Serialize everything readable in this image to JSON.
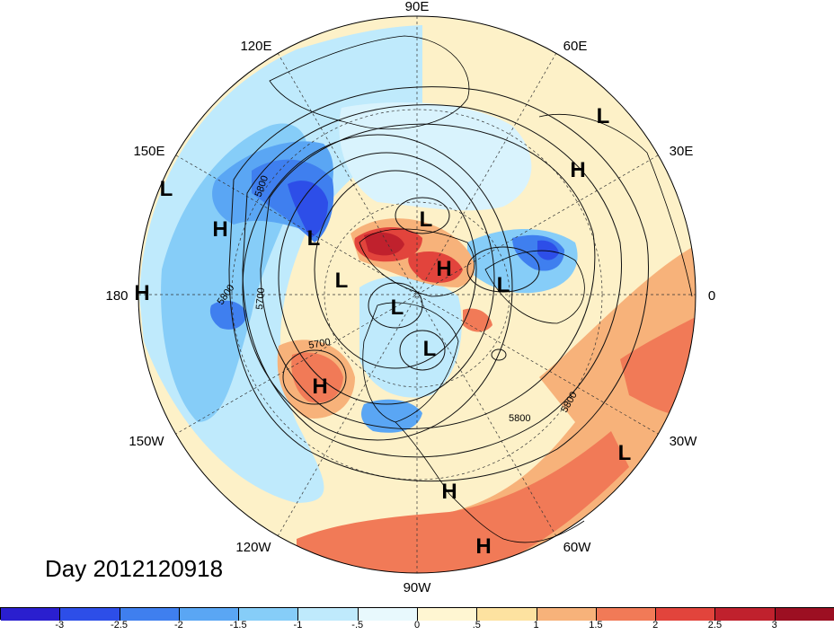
{
  "title": "Day 2012120918",
  "longitude_labels": [
    "90E",
    "60E",
    "30E",
    "0",
    "30W",
    "60W",
    "90W",
    "120W",
    "150W",
    "180",
    "150E",
    "120E"
  ],
  "contour_labels": [
    "5800",
    "5700",
    "5800",
    "5700",
    "5800",
    "5800"
  ],
  "pressure_centers": [
    {
      "type": "L"
    },
    {
      "type": "H"
    },
    {
      "type": "L"
    },
    {
      "type": "H"
    },
    {
      "type": "L"
    },
    {
      "type": "H"
    },
    {
      "type": "L"
    },
    {
      "type": "L"
    },
    {
      "type": "L"
    },
    {
      "type": "L"
    },
    {
      "type": "L"
    },
    {
      "type": "H"
    },
    {
      "type": "H"
    },
    {
      "type": "L"
    },
    {
      "type": "H"
    },
    {
      "type": "H"
    }
  ],
  "colorbar": {
    "ticks": [
      "-3",
      "-2.5",
      "-2",
      "-1.5",
      "-1",
      "-.5",
      "0",
      ".5",
      "1",
      "1.5",
      "2",
      "2.5",
      "3"
    ],
    "colors": [
      "#2a1fcf",
      "#2d4ee8",
      "#3f7fef",
      "#5aa6f4",
      "#86cdf8",
      "#bfeafc",
      "#e8f9fd",
      "#fff6d2",
      "#fde2a0",
      "#f7b27a",
      "#f17a57",
      "#e2443c",
      "#c0212d",
      "#9c0f22"
    ]
  }
}
